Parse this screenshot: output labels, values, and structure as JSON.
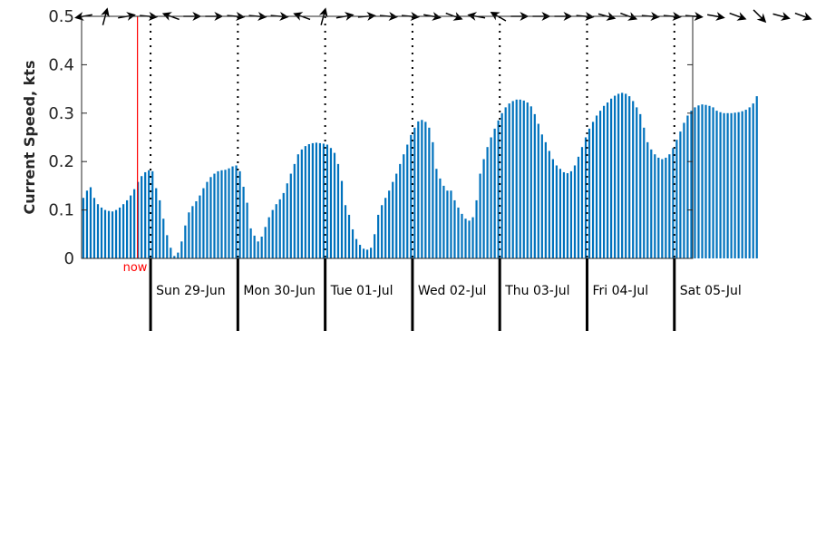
{
  "chart_data": {
    "type": "bar",
    "ylabel": "Current Speed, kts",
    "ylim": [
      0,
      0.5
    ],
    "yticks": [
      "0",
      "0.1",
      "0.2",
      "0.3",
      "0.4",
      "0.5"
    ],
    "xlim": [
      -0.79,
      6.21
    ],
    "grid": false,
    "colors": {
      "bar": "#0072BD",
      "now": "#ff0000",
      "axis": "#262626"
    },
    "days": [
      "Sun 29-Jun",
      "Mon 30-Jun",
      "Tue 01-Jul",
      "Wed 02-Jul",
      "Thu 03-Jul",
      "Fri 04-Jul",
      "Sat 05-Jul"
    ],
    "now": {
      "label": "now",
      "x": -0.15
    },
    "speed": {
      "start": -0.77,
      "step": 0.0417,
      "values": [
        0.125,
        0.14,
        0.147,
        0.125,
        0.112,
        0.105,
        0.1,
        0.098,
        0.097,
        0.1,
        0.105,
        0.112,
        0.12,
        0.13,
        0.143,
        0.158,
        0.17,
        0.178,
        0.182,
        0.18,
        0.145,
        0.12,
        0.082,
        0.048,
        0.022,
        0.005,
        0.012,
        0.035,
        0.068,
        0.095,
        0.108,
        0.118,
        0.13,
        0.145,
        0.158,
        0.168,
        0.175,
        0.18,
        0.182,
        0.183,
        0.186,
        0.19,
        0.192,
        0.18,
        0.148,
        0.115,
        0.062,
        0.047,
        0.035,
        0.045,
        0.065,
        0.085,
        0.1,
        0.112,
        0.122,
        0.135,
        0.155,
        0.175,
        0.195,
        0.215,
        0.225,
        0.232,
        0.236,
        0.238,
        0.239,
        0.238,
        0.237,
        0.235,
        0.228,
        0.218,
        0.195,
        0.16,
        0.11,
        0.09,
        0.06,
        0.04,
        0.028,
        0.02,
        0.018,
        0.022,
        0.05,
        0.09,
        0.11,
        0.125,
        0.14,
        0.158,
        0.175,
        0.195,
        0.215,
        0.235,
        0.255,
        0.27,
        0.283,
        0.286,
        0.282,
        0.27,
        0.24,
        0.185,
        0.165,
        0.15,
        0.14,
        0.14,
        0.12,
        0.105,
        0.092,
        0.082,
        0.078,
        0.085,
        0.12,
        0.175,
        0.205,
        0.23,
        0.25,
        0.268,
        0.285,
        0.3,
        0.312,
        0.32,
        0.325,
        0.328,
        0.328,
        0.326,
        0.322,
        0.314,
        0.298,
        0.278,
        0.256,
        0.24,
        0.222,
        0.205,
        0.192,
        0.185,
        0.178,
        0.176,
        0.18,
        0.192,
        0.21,
        0.23,
        0.25,
        0.268,
        0.282,
        0.295,
        0.305,
        0.315,
        0.322,
        0.33,
        0.336,
        0.34,
        0.342,
        0.34,
        0.335,
        0.325,
        0.312,
        0.298,
        0.27,
        0.24,
        0.225,
        0.215,
        0.208,
        0.205,
        0.208,
        0.215,
        0.228,
        0.245,
        0.262,
        0.28,
        0.295,
        0.305,
        0.312,
        0.316,
        0.318,
        0.317,
        0.315,
        0.312,
        0.305,
        0.302,
        0.3,
        0.3,
        0.3,
        0.301,
        0.302,
        0.304,
        0.307,
        0.312,
        0.32,
        0.335
      ]
    },
    "arrows": {
      "start": -0.77,
      "step": 0.25,
      "directions_deg": [
        260,
        15,
        80,
        95,
        290,
        90,
        90,
        95,
        95,
        95,
        290,
        15,
        80,
        85,
        95,
        95,
        100,
        110,
        280,
        300,
        90,
        90,
        90,
        95,
        105,
        110,
        95,
        95,
        95,
        100,
        110,
        135,
        105,
        110,
        100,
        95,
        100,
        110,
        95,
        95,
        100,
        110,
        100,
        90,
        95,
        95,
        100,
        95
      ]
    }
  }
}
